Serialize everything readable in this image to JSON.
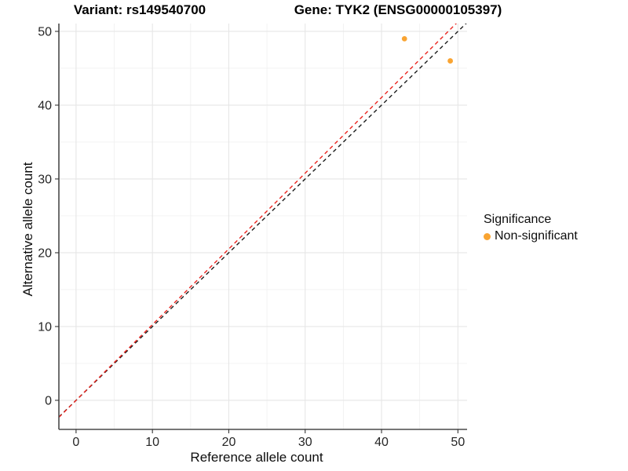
{
  "header": {
    "variant_title": "Variant: rs149540700",
    "gene_title": "Gene: TYK2 (ENSG00000105397)"
  },
  "axes": {
    "x_label": "Reference allele count",
    "y_label": "Alternative allele count",
    "x_ticks": [
      0,
      10,
      20,
      30,
      40,
      50
    ],
    "y_ticks": [
      0,
      10,
      20,
      30,
      40,
      50
    ],
    "x_minor_ticks": [
      5,
      15,
      25,
      35,
      45
    ],
    "y_minor_ticks": [
      5,
      15,
      25,
      35,
      45
    ]
  },
  "legend": {
    "title": "Significance",
    "items": [
      {
        "label": "Non-significant",
        "color": "#F9A432"
      }
    ]
  },
  "chart_data": {
    "type": "scatter",
    "title": "Variant: rs149540700 — Gene: TYK2 (ENSG00000105397)",
    "xlabel": "Reference allele count",
    "ylabel": "Alternative allele count",
    "xlim": [
      -2.25,
      51.2
    ],
    "ylim": [
      -3.94,
      51.06
    ],
    "grid": true,
    "legend_position": "right",
    "series": [
      {
        "name": "Non-significant",
        "color": "#F9A432",
        "points": [
          {
            "x": 43,
            "y": 49
          },
          {
            "x": 49,
            "y": 46
          }
        ]
      }
    ],
    "reference_lines": [
      {
        "name": "identity-line",
        "slope": 1.0,
        "intercept": 0,
        "style": "dashed",
        "color": "#1c1c1c"
      },
      {
        "name": "fit-line",
        "slope": 1.026,
        "intercept": 0,
        "style": "dashed",
        "color": "#ea231d"
      }
    ]
  },
  "style_colors": {
    "point": "#F9A432",
    "axis_line": "#4a4a4a",
    "tick_label": "#262626",
    "grid_major": "#e6e6e6",
    "grid_minor": "#f1f1f1"
  }
}
